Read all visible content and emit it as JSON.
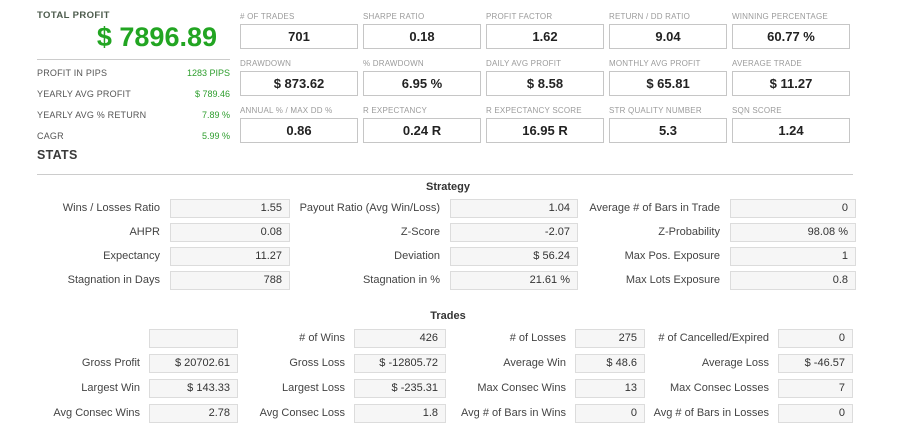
{
  "summary": {
    "title": "TOTAL PROFIT",
    "total": "$ 7896.89",
    "rows": [
      {
        "label": "PROFIT IN PIPS",
        "value": "1283 PIPS"
      },
      {
        "label": "YEARLY AVG PROFIT",
        "value": "$ 789.46"
      },
      {
        "label": "YEARLY AVG % RETURN",
        "value": "7.89 %"
      },
      {
        "label": "CAGR",
        "value": "5.99 %"
      }
    ]
  },
  "metrics": [
    {
      "label": "# OF TRADES",
      "value": "701"
    },
    {
      "label": "SHARPE RATIO",
      "value": "0.18"
    },
    {
      "label": "PROFIT FACTOR",
      "value": "1.62"
    },
    {
      "label": "RETURN / DD RATIO",
      "value": "9.04"
    },
    {
      "label": "WINNING PERCENTAGE",
      "value": "60.77 %"
    },
    {
      "label": "DRAWDOWN",
      "value": "$ 873.62"
    },
    {
      "label": "% DRAWDOWN",
      "value": "6.95 %"
    },
    {
      "label": "DAILY AVG PROFIT",
      "value": "$ 8.58"
    },
    {
      "label": "MONTHLY AVG PROFIT",
      "value": "$ 65.81"
    },
    {
      "label": "AVERAGE TRADE",
      "value": "$ 11.27"
    },
    {
      "label": "ANNUAL % / MAX DD %",
      "value": "0.86"
    },
    {
      "label": "R EXPECTANCY",
      "value": "0.24 R"
    },
    {
      "label": "R EXPECTANCY SCORE",
      "value": "16.95 R"
    },
    {
      "label": "STR QUALITY NUMBER",
      "value": "5.3"
    },
    {
      "label": "SQN SCORE",
      "value": "1.24"
    }
  ],
  "stats_heading": "STATS",
  "strategy": {
    "heading": "Strategy",
    "rows": [
      [
        {
          "label": "Wins / Losses Ratio",
          "value": "1.55"
        },
        {
          "label": "Payout Ratio (Avg Win/Loss)",
          "value": "1.04"
        },
        {
          "label": "Average # of Bars in Trade",
          "value": "0"
        }
      ],
      [
        {
          "label": "AHPR",
          "value": "0.08"
        },
        {
          "label": "Z-Score",
          "value": "-2.07"
        },
        {
          "label": "Z-Probability",
          "value": "98.08 %"
        }
      ],
      [
        {
          "label": "Expectancy",
          "value": "11.27"
        },
        {
          "label": "Deviation",
          "value": "$ 56.24"
        },
        {
          "label": "Max Pos. Exposure",
          "value": "1"
        }
      ],
      [
        {
          "label": "Stagnation in Days",
          "value": "788"
        },
        {
          "label": "Stagnation in %",
          "value": "21.61 %"
        },
        {
          "label": "Max Lots Exposure",
          "value": "0.8"
        }
      ]
    ]
  },
  "trades": {
    "heading": "Trades",
    "rows": [
      [
        {
          "label": "",
          "value": ""
        },
        {
          "label": "# of Wins",
          "value": "426"
        },
        {
          "label": "# of Losses",
          "value": "275"
        },
        {
          "label": "# of Cancelled/Expired",
          "value": "0"
        }
      ],
      [
        {
          "label": "Gross Profit",
          "value": "$ 20702.61"
        },
        {
          "label": "Gross Loss",
          "value": "$ -12805.72"
        },
        {
          "label": "Average Win",
          "value": "$ 48.6"
        },
        {
          "label": "Average Loss",
          "value": "$ -46.57"
        }
      ],
      [
        {
          "label": "Largest Win",
          "value": "$ 143.33"
        },
        {
          "label": "Largest Loss",
          "value": "$ -235.31"
        },
        {
          "label": "Max Consec Wins",
          "value": "13"
        },
        {
          "label": "Max Consec Losses",
          "value": "7"
        }
      ],
      [
        {
          "label": "Avg Consec Wins",
          "value": "2.78"
        },
        {
          "label": "Avg Consec Loss",
          "value": "1.8"
        },
        {
          "label": "Avg # of Bars in Wins",
          "value": "0"
        },
        {
          "label": "Avg # of Bars in Losses",
          "value": "0"
        }
      ]
    ]
  },
  "colors": {
    "profit_green": "#22a522",
    "value_green": "#2e9e2e",
    "heading_dark": "#3a3a3a",
    "metric_label_gray": "#9b9b9b",
    "box_border": "#c6c6c6",
    "table_box_bg": "#f6f6f6"
  }
}
